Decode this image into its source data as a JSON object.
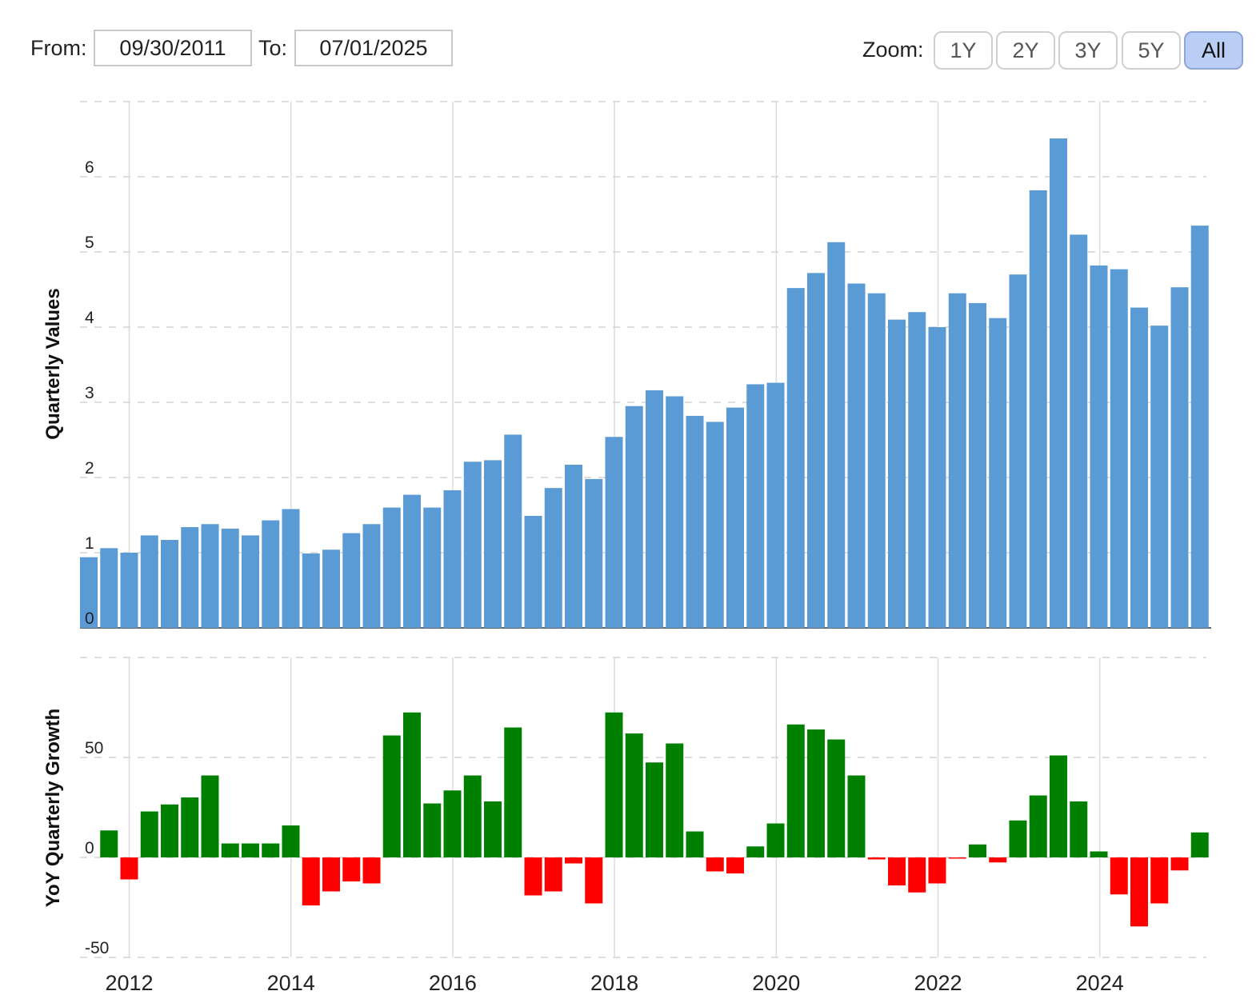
{
  "range": {
    "from_label": "From:",
    "from_value": "09/30/2011",
    "to_label": "To:",
    "to_value": "07/01/2025"
  },
  "zoom": {
    "label": "Zoom:",
    "buttons": [
      "1Y",
      "2Y",
      "3Y",
      "5Y",
      "All"
    ],
    "active": "All"
  },
  "chart_data": [
    {
      "type": "bar",
      "ylabel": "Quarterly Values",
      "ylim": [
        0,
        7
      ],
      "yticks": [
        0,
        1,
        2,
        3,
        4,
        5,
        6
      ],
      "grid": true,
      "color": "#5b9bd5",
      "x_ticks": [
        "2012",
        "2014",
        "2016",
        "2018",
        "2020",
        "2022",
        "2024"
      ],
      "x": [
        "2011-09-30",
        "2011-12-31",
        "2012-03-31",
        "2012-06-30",
        "2012-09-30",
        "2012-12-31",
        "2013-03-31",
        "2013-06-30",
        "2013-09-30",
        "2013-12-31",
        "2014-03-31",
        "2014-06-30",
        "2014-09-30",
        "2014-12-31",
        "2015-03-31",
        "2015-06-30",
        "2015-09-30",
        "2015-12-31",
        "2016-03-31",
        "2016-06-30",
        "2016-09-30",
        "2016-12-31",
        "2017-03-31",
        "2017-06-30",
        "2017-09-30",
        "2017-12-31",
        "2018-03-31",
        "2018-06-30",
        "2018-09-30",
        "2018-12-31",
        "2019-03-31",
        "2019-06-30",
        "2019-09-30",
        "2019-12-31",
        "2020-03-31",
        "2020-06-30",
        "2020-09-30",
        "2020-12-31",
        "2021-03-31",
        "2021-06-30",
        "2021-09-30",
        "2021-12-31",
        "2022-03-31",
        "2022-06-30",
        "2022-09-30",
        "2022-12-31",
        "2023-03-31",
        "2023-06-30",
        "2023-09-30",
        "2023-12-31",
        "2024-03-31",
        "2024-06-30",
        "2024-09-30",
        "2024-12-31",
        "2025-03-31",
        "2025-06-30"
      ],
      "values": [
        0.94,
        1.06,
        1.0,
        1.23,
        1.17,
        1.34,
        1.38,
        1.32,
        1.23,
        1.43,
        1.58,
        0.99,
        1.04,
        1.26,
        1.38,
        1.6,
        1.77,
        1.6,
        1.83,
        2.21,
        2.23,
        2.57,
        1.49,
        1.86,
        2.17,
        1.98,
        2.54,
        2.95,
        3.16,
        3.08,
        2.82,
        2.74,
        2.93,
        3.24,
        3.26,
        4.52,
        4.72,
        5.13,
        4.58,
        4.45,
        4.1,
        4.2,
        4.0,
        4.45,
        4.32,
        4.12,
        4.7,
        5.82,
        6.51,
        5.23,
        4.82,
        4.77,
        4.26,
        4.02,
        4.53,
        5.35
      ]
    },
    {
      "type": "bar",
      "ylabel": "YoY Quarterly Growth",
      "ylim": [
        -50,
        100
      ],
      "yticks": [
        -50,
        0,
        50
      ],
      "grid": true,
      "positive_color": "#008000",
      "negative_color": "#ff0000",
      "x_ticks": [
        "2012",
        "2014",
        "2016",
        "2018",
        "2020",
        "2022",
        "2024"
      ],
      "x": [
        "2011-09-30",
        "2011-12-31",
        "2012-03-31",
        "2012-06-30",
        "2012-09-30",
        "2012-12-31",
        "2013-03-31",
        "2013-06-30",
        "2013-09-30",
        "2013-12-31",
        "2014-03-31",
        "2014-06-30",
        "2014-09-30",
        "2014-12-31",
        "2015-03-31",
        "2015-06-30",
        "2015-09-30",
        "2015-12-31",
        "2016-03-31",
        "2016-06-30",
        "2016-09-30",
        "2016-12-31",
        "2017-03-31",
        "2017-06-30",
        "2017-09-30",
        "2017-12-31",
        "2018-03-31",
        "2018-06-30",
        "2018-09-30",
        "2018-12-31",
        "2019-03-31",
        "2019-06-30",
        "2019-09-30",
        "2019-12-31",
        "2020-03-31",
        "2020-06-30",
        "2020-09-30",
        "2020-12-31",
        "2021-03-31",
        "2021-06-30",
        "2021-09-30",
        "2021-12-31",
        "2022-03-31",
        "2022-06-30",
        "2022-09-30",
        "2022-12-31",
        "2023-03-31",
        "2023-06-30",
        "2023-09-30",
        "2023-12-31",
        "2024-03-31",
        "2024-06-30",
        "2024-09-30",
        "2024-12-31",
        "2025-03-31",
        "2025-06-30"
      ],
      "values": [
        null,
        13.5,
        -11,
        23,
        26.5,
        30,
        41,
        7,
        7,
        7,
        16,
        -24,
        -17,
        -12,
        -13,
        61,
        72.5,
        27,
        33.5,
        41,
        28,
        65,
        -19,
        -17,
        -3,
        -23,
        72.5,
        62,
        47.5,
        57,
        13,
        -7,
        -8,
        5.5,
        17,
        66.5,
        64,
        59,
        41,
        -1,
        -14,
        -17.5,
        -13,
        -0.5,
        6.5,
        -2.5,
        18.5,
        31,
        51,
        28,
        3,
        -18.5,
        -34.5,
        -23,
        -6.5,
        12.5
      ]
    }
  ]
}
